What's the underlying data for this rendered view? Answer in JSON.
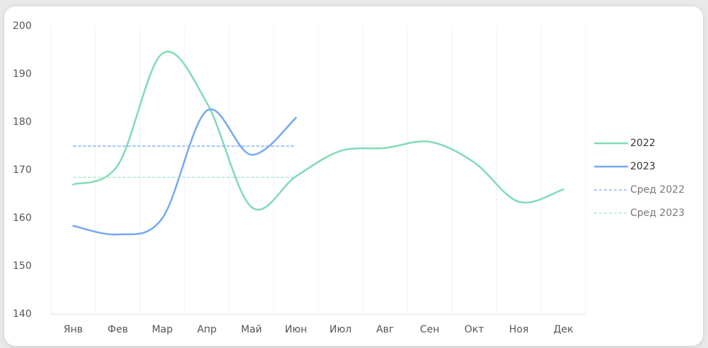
{
  "chart_data": {
    "type": "line",
    "categories": [
      "Янв",
      "Фев",
      "Мар",
      "Апр",
      "Май",
      "Июн",
      "Июл",
      "Авг",
      "Сен",
      "Окт",
      "Ноя",
      "Дек"
    ],
    "series": [
      {
        "name": "2022",
        "color": "#7fdcb4",
        "values": [
          167,
          171,
          194.3,
          184,
          162.3,
          168.7,
          174,
          174.6,
          175.9,
          171.6,
          163.4,
          166
        ]
      },
      {
        "name": "2023",
        "color": "#73a9f5",
        "values": [
          158.4,
          156.6,
          160,
          182.4,
          173.2,
          180.9,
          null,
          null,
          null,
          null,
          null,
          null
        ]
      },
      {
        "name": "Сред 2022",
        "color": "#73a9f5",
        "dashed": true,
        "values": [
          175,
          175,
          175,
          175,
          175,
          175,
          null,
          null,
          null,
          null,
          null,
          null
        ]
      },
      {
        "name": "Сред 2023",
        "color": "#9ee3c5",
        "dashed": true,
        "values": [
          168.5,
          168.5,
          168.5,
          168.5,
          168.5,
          168.5,
          null,
          null,
          null,
          null,
          null,
          null
        ]
      }
    ],
    "ylim": [
      140,
      200
    ],
    "yticks": [
      140,
      150,
      160,
      170,
      180,
      190,
      200
    ],
    "legend": "right"
  }
}
